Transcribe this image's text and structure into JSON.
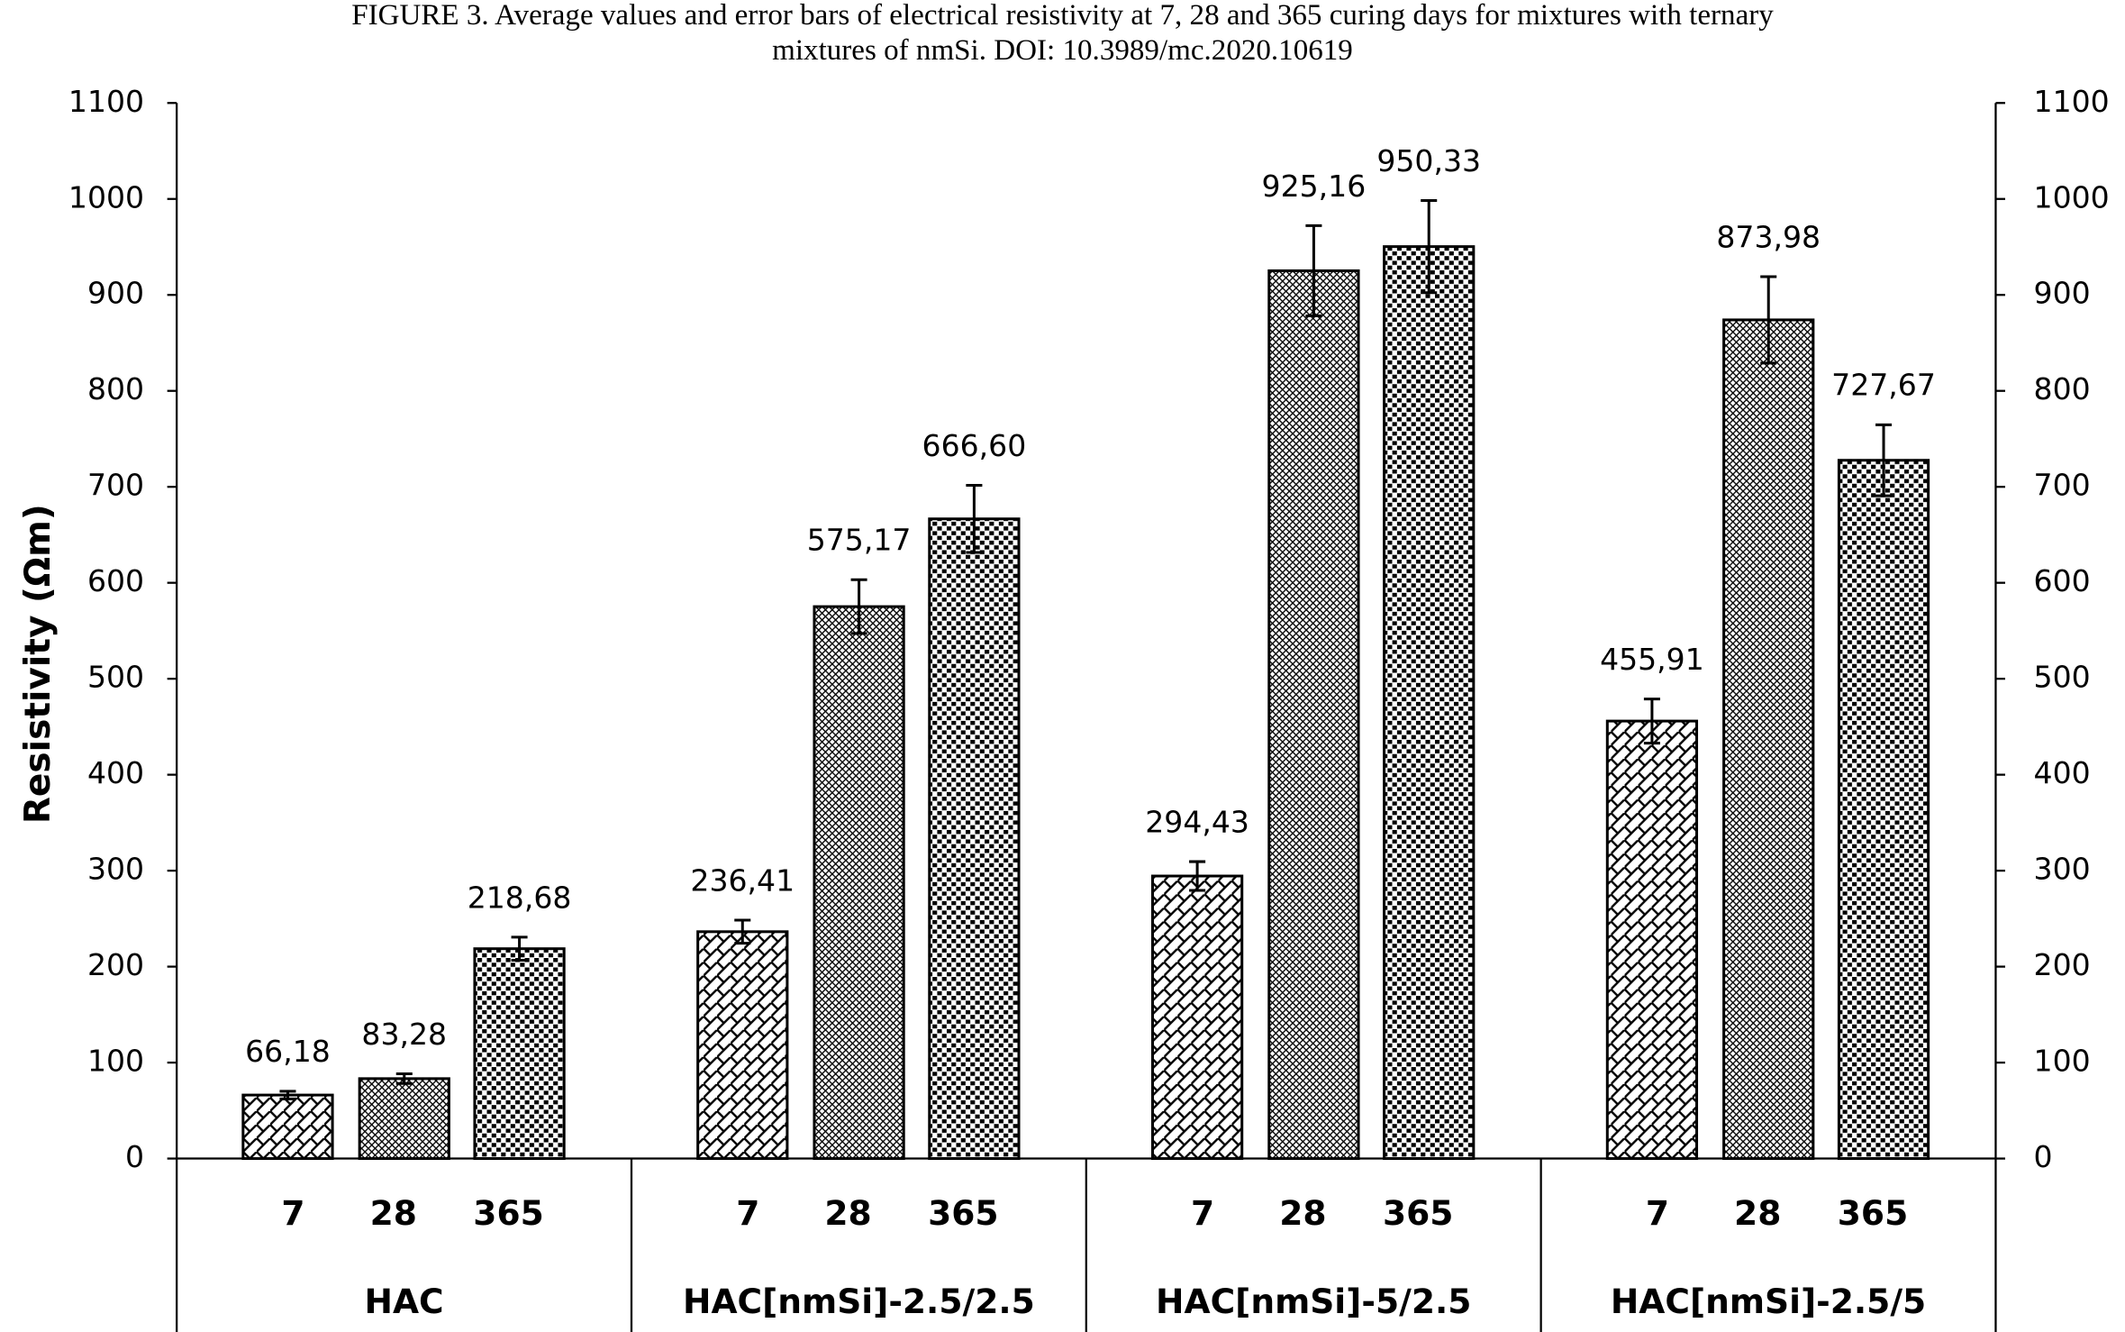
{
  "chart_data": {
    "type": "bar",
    "title": [
      "FIGURE 3.    Average values and error bars of electrical resistivity at 7, 28 and 365 curing days for mixtures with ternary",
      "mixtures of nmSi. DOI: 10.3989/mc.2020.10619"
    ],
    "y_label": "Resistivity (Ωm)",
    "categories": [
      "7",
      "28",
      "365"
    ],
    "series": [
      {
        "name": "HAC",
        "color": "#000000",
        "values": [
          66.18,
          83.28,
          218.68
        ],
        "errors": [
          4,
          5,
          12
        ],
        "value_labels": [
          "66,18",
          "83,28",
          "218,68"
        ]
      },
      {
        "name": "HAC[nmSi]-2.5/2.5",
        "color": "#000000",
        "values": [
          236.41,
          575.17,
          666.6
        ],
        "errors": [
          12,
          28,
          35
        ],
        "value_labels": [
          "236,41",
          "575,17",
          "666,60"
        ]
      },
      {
        "name": "HAC[nmSi]-5/2.5",
        "color": "#000000",
        "values": [
          294.43,
          925.16,
          950.33
        ],
        "errors": [
          15,
          47,
          48
        ],
        "value_labels": [
          "294,43",
          "925,16",
          "950,33"
        ]
      },
      {
        "name": "HAC[nmSi]-2.5/5",
        "color": "#000000",
        "values": [
          455.91,
          873.98,
          727.67
        ],
        "errors": [
          23,
          45,
          37
        ],
        "value_labels": [
          "455,91",
          "873,98",
          "727,67"
        ]
      }
    ],
    "ylim": [
      0,
      1100
    ],
    "yticks": [
      0,
      100,
      200,
      300,
      400,
      500,
      600,
      700,
      800,
      900,
      1000,
      1100
    ],
    "y2lim": [
      0,
      1100
    ],
    "y2ticks": [
      0,
      100,
      200,
      300,
      400,
      500,
      600,
      700,
      800,
      900,
      1000,
      1100
    ],
    "grid": false
  }
}
